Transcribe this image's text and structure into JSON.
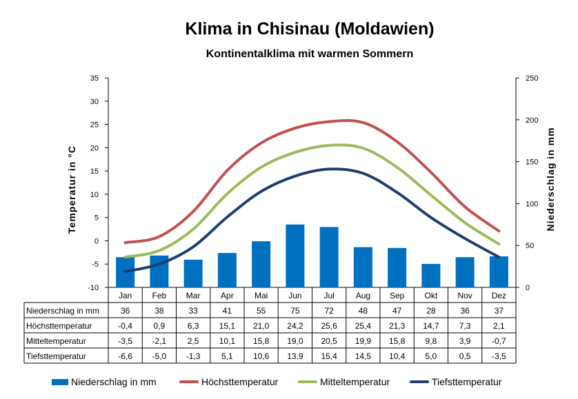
{
  "chart_data": {
    "type": "bar",
    "title": "Klima in Chisinau (Moldawien)",
    "subtitle": "Kontinentalklima mit warmen Sommern",
    "ylabel_left": "Temperatur in °C",
    "ylabel_right": "Niederschlag in mm",
    "ylim_left": [
      -10,
      35
    ],
    "ylim_right": [
      0,
      250
    ],
    "yticks_left": [
      "35",
      "30",
      "25",
      "20",
      "15",
      "10",
      "5",
      "0",
      "-5",
      "-10"
    ],
    "yticks_right": [
      "250",
      "200",
      "150",
      "100",
      "50",
      "0"
    ],
    "categories": [
      "Jan",
      "Feb",
      "Mar",
      "Apr",
      "Mai",
      "Jun",
      "Jul",
      "Aug",
      "Sep",
      "Okt",
      "Nov",
      "Dez"
    ],
    "grid": false,
    "legend_position": "bottom",
    "series": [
      {
        "name": "Niederschlag in mm",
        "type": "bar",
        "axis": "right",
        "color": "#0070c0",
        "values": [
          36,
          38,
          33,
          41,
          55,
          75,
          72,
          48,
          47,
          28,
          36,
          37
        ],
        "labels": [
          "36",
          "38",
          "33",
          "41",
          "55",
          "75",
          "72",
          "48",
          "47",
          "28",
          "36",
          "37"
        ]
      },
      {
        "name": "Höchsttemperatur",
        "type": "line",
        "axis": "left",
        "color": "#c0504d",
        "values": [
          -0.4,
          0.9,
          6.3,
          15.1,
          21.0,
          24.2,
          25.6,
          25.4,
          21.3,
          14.7,
          7.3,
          2.1
        ],
        "labels": [
          "-0,4",
          "0,9",
          "6,3",
          "15,1",
          "21,0",
          "24,2",
          "25,6",
          "25,4",
          "21,3",
          "14,7",
          "7,3",
          "2,1"
        ]
      },
      {
        "name": "Mitteltemperatur",
        "type": "line",
        "axis": "left",
        "color": "#9bbb59",
        "values": [
          -3.5,
          -2.1,
          2.5,
          10.1,
          15.8,
          19.0,
          20.5,
          19.9,
          15.8,
          9.8,
          3.9,
          -0.7
        ],
        "labels": [
          "-3,5",
          "-2,1",
          "2,5",
          "10,1",
          "15,8",
          "19,0",
          "20,5",
          "19,9",
          "15,8",
          "9,8",
          "3,9",
          "-0,7"
        ]
      },
      {
        "name": "Tiefsttemperatur",
        "type": "line",
        "axis": "left",
        "color": "#1f3d6e",
        "values": [
          -6.6,
          -5.0,
          -1.3,
          5.1,
          10.6,
          13.9,
          15.4,
          14.5,
          10.4,
          5.0,
          0.5,
          -3.5
        ],
        "labels": [
          "-6,6",
          "-5,0",
          "-1,3",
          "5,1",
          "10,6",
          "13,9",
          "15,4",
          "14,5",
          "10,4",
          "5,0",
          "0,5",
          "-3,5"
        ]
      }
    ]
  }
}
